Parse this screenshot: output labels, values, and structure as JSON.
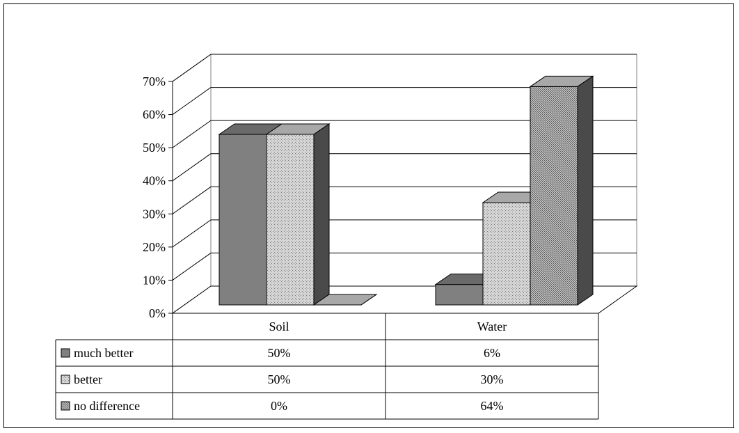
{
  "chart_data": {
    "type": "bar",
    "categories": [
      "Soil",
      "Water"
    ],
    "series": [
      {
        "name": "much better",
        "values": [
          50,
          6
        ],
        "labels": [
          "50%",
          "6%"
        ],
        "color": "#808080",
        "pattern": "solid"
      },
      {
        "name": "better",
        "values": [
          50,
          30
        ],
        "labels": [
          "50%",
          "30%"
        ],
        "color": "#b8b8b8",
        "pattern": "dots"
      },
      {
        "name": "no difference",
        "values": [
          0,
          64
        ],
        "labels": [
          "0%",
          "64%"
        ],
        "color": "#9a9a9a",
        "pattern": "dense"
      }
    ],
    "ylim": [
      0,
      70
    ],
    "yticks": [
      "0%",
      "10%",
      "20%",
      "30%",
      "40%",
      "50%",
      "60%",
      "70%"
    ],
    "grid": true,
    "three_d": true,
    "data_table": true
  }
}
